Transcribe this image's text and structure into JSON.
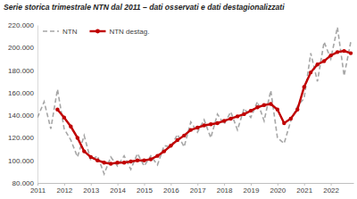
{
  "chart_data": {
    "type": "line",
    "title": "Serie storica trimestrale NTN dal 2011 – dati osservati e dati destagionalizzati",
    "x": [
      2011,
      2011.25,
      2011.5,
      2011.75,
      2012,
      2012.25,
      2012.5,
      2012.75,
      2013,
      2013.25,
      2013.5,
      2013.75,
      2014,
      2014.25,
      2014.5,
      2014.75,
      2015,
      2015.25,
      2015.5,
      2015.75,
      2016,
      2016.25,
      2016.5,
      2016.75,
      2017,
      2017.25,
      2017.5,
      2017.75,
      2018,
      2018.25,
      2018.5,
      2018.75,
      2019,
      2019.25,
      2019.5,
      2019.75,
      2020,
      2020.25,
      2020.5,
      2020.75,
      2021,
      2021.25,
      2021.5,
      2021.75,
      2022,
      2022.25,
      2022.5,
      2022.75
    ],
    "series": [
      {
        "name": "NTN",
        "color": "#a6a6a6",
        "line_style": "dashed",
        "marker": "none",
        "values": [
          138000,
          152000,
          128000,
          163000,
          128000,
          118000,
          103000,
          122000,
          100000,
          104000,
          88000,
          103000,
          95000,
          104000,
          92000,
          106000,
          95000,
          104000,
          96000,
          113000,
          112000,
          123000,
          112000,
          134000,
          125000,
          136000,
          120000,
          141000,
          132000,
          143000,
          127000,
          146000,
          138000,
          152000,
          135000,
          162000,
          120000,
          115000,
          135000,
          148000,
          155000,
          195000,
          170000,
          205000,
          190000,
          218000,
          175000,
          205000
        ]
      },
      {
        "name": "NTN destag.",
        "color": "#c00000",
        "line_style": "solid",
        "marker": "circle",
        "values": [
          null,
          null,
          null,
          145000,
          138000,
          130000,
          120000,
          108000,
          103000,
          100000,
          98000,
          97000,
          98000,
          98000,
          99000,
          100000,
          100000,
          101000,
          104000,
          108000,
          113000,
          118000,
          122000,
          127000,
          129000,
          131000,
          132000,
          133000,
          135000,
          137000,
          139000,
          141000,
          144000,
          147000,
          149000,
          150000,
          145000,
          133000,
          137000,
          145000,
          165000,
          178000,
          185000,
          188000,
          193000,
          196000,
          197000,
          195000
        ]
      }
    ],
    "xlim": [
      2011,
      2022.85
    ],
    "xticks": [
      2011,
      2012,
      2013,
      2014,
      2015,
      2016,
      2017,
      2018,
      2019,
      2020,
      2021,
      2022
    ],
    "ylim": [
      80000,
      220000
    ],
    "yticks": [
      {
        "value": 80000,
        "label": "80.000"
      },
      {
        "value": 100000,
        "label": "100.000"
      },
      {
        "value": 120000,
        "label": "120.000"
      },
      {
        "value": 140000,
        "label": "140.000"
      },
      {
        "value": 160000,
        "label": "160.000"
      },
      {
        "value": 180000,
        "label": "180.000"
      },
      {
        "value": 200000,
        "label": "200.000"
      },
      {
        "value": 220000,
        "label": "220.000"
      }
    ],
    "grid": false,
    "legend": "top-left"
  }
}
